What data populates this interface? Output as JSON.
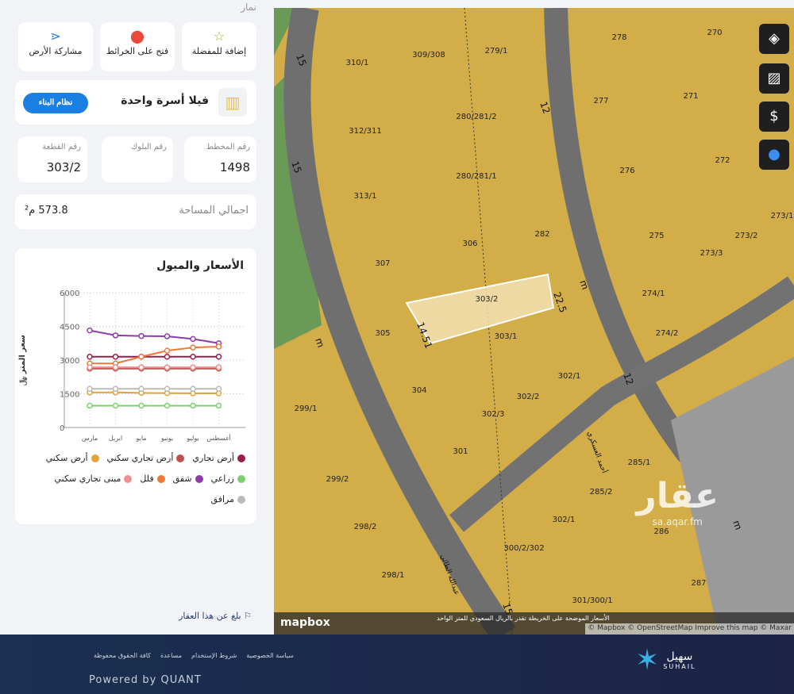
{
  "panel": {
    "top_label": "نمار",
    "actions": [
      {
        "label": "إضافة للمفضلة",
        "icon": "star-icon"
      },
      {
        "label": "فتح على الخرائط",
        "icon": "map-pin-icon"
      },
      {
        "label": "مشاركة الأرض",
        "icon": "share-icon"
      }
    ],
    "land_use": "فيلا أسرة واحدة",
    "building_system_button": "نظام البناء",
    "plan_label": "رقم المخطط",
    "plan_value": "1498",
    "block_label": "رقم البلوك",
    "block_value": "",
    "parcel_label": "رقم القطعة",
    "parcel_value": "303/2",
    "area_label": "اجمالي المساحة",
    "area_value": "573.8 م²",
    "report": "بلغ عن هذا العقار"
  },
  "chart_data": {
    "type": "line",
    "title": "الأسعار والميول",
    "ylabel": "سعر المتر ﷼",
    "ylim": [
      0,
      6000
    ],
    "yticks": [
      0,
      1500,
      3000,
      4500,
      6000
    ],
    "categories": [
      "مارس",
      "ابريل",
      "مايو",
      "يونيو",
      "يوليو",
      "أغسطس"
    ],
    "grid": true,
    "series": [
      {
        "name": "أرض تجاري",
        "color": "#9c1d4b",
        "values": [
          3150,
          3150,
          3150,
          3150,
          3150,
          3150
        ]
      },
      {
        "name": "أرض تجاري سكني",
        "color": "#c0504d",
        "values": [
          2620,
          2620,
          2620,
          2620,
          2620,
          2620
        ]
      },
      {
        "name": "أرض سكني",
        "color": "#e3a23a",
        "values": [
          1560,
          1560,
          1540,
          1530,
          1520,
          1520
        ]
      },
      {
        "name": "زراعي",
        "color": "#7ccf6e",
        "values": [
          970,
          970,
          970,
          970,
          970,
          970
        ]
      },
      {
        "name": "شقق",
        "color": "#8e3ca8",
        "values": [
          4320,
          4100,
          4070,
          4060,
          3940,
          3750
        ]
      },
      {
        "name": "فلل",
        "color": "#ec7a3b",
        "values": [
          2850,
          2850,
          3150,
          3420,
          3560,
          3600
        ]
      },
      {
        "name": "مبنى تجاري سكني",
        "color": "#ef8e8e",
        "values": [
          2680,
          2680,
          2680,
          2680,
          2680,
          2680
        ]
      },
      {
        "name": "مرافق",
        "color": "#bbbbbb",
        "values": [
          1720,
          1720,
          1720,
          1720,
          1720,
          1720
        ]
      }
    ]
  },
  "map": {
    "parcels": [
      "310/1",
      "309/308",
      "279/1",
      "278",
      "270",
      "312/311",
      "280/281/2",
      "277",
      "271",
      "313/1",
      "280/281/1",
      "276",
      "272",
      "307",
      "306",
      "282",
      "275",
      "273/3",
      "273/2",
      "273/1",
      "303/2",
      "274/1",
      "305",
      "303/1",
      "274/2",
      "304",
      "302/2",
      "302/1",
      "302/3",
      "299/1",
      "301",
      "299/2",
      "285/1",
      "285/2",
      "286",
      "302/1",
      "300/2/302",
      "298/2",
      "298/1",
      "287",
      "301/300/1"
    ],
    "streets": [
      "15",
      "15",
      "12",
      "12",
      "m",
      "m",
      "m",
      "15",
      "14.51",
      "22.5",
      "عبدالله الطائي",
      "أحمد العسكري"
    ],
    "buttons": [
      "layers-icon",
      "satellite-icon",
      "price-icon",
      "globe-icon"
    ],
    "mapbox": "mapbox",
    "note": "الأسعار الموضحة على الخريطة تقدر بالريال السعودي للمتر الواحد",
    "attribution": "© Mapbox © OpenStreetMap Improve this map © Maxar",
    "watermark": "عقار",
    "watermark_url": "sa.aqar.fm"
  },
  "footer": {
    "links": [
      "سياسة الخصوصية",
      "شروط الإستخدام",
      "مساعدة",
      "كافة الحقوق محفوظة"
    ],
    "powered": "Powered by QUANT",
    "brand_ar": "سهيل",
    "brand_en": "SUHAIL"
  }
}
